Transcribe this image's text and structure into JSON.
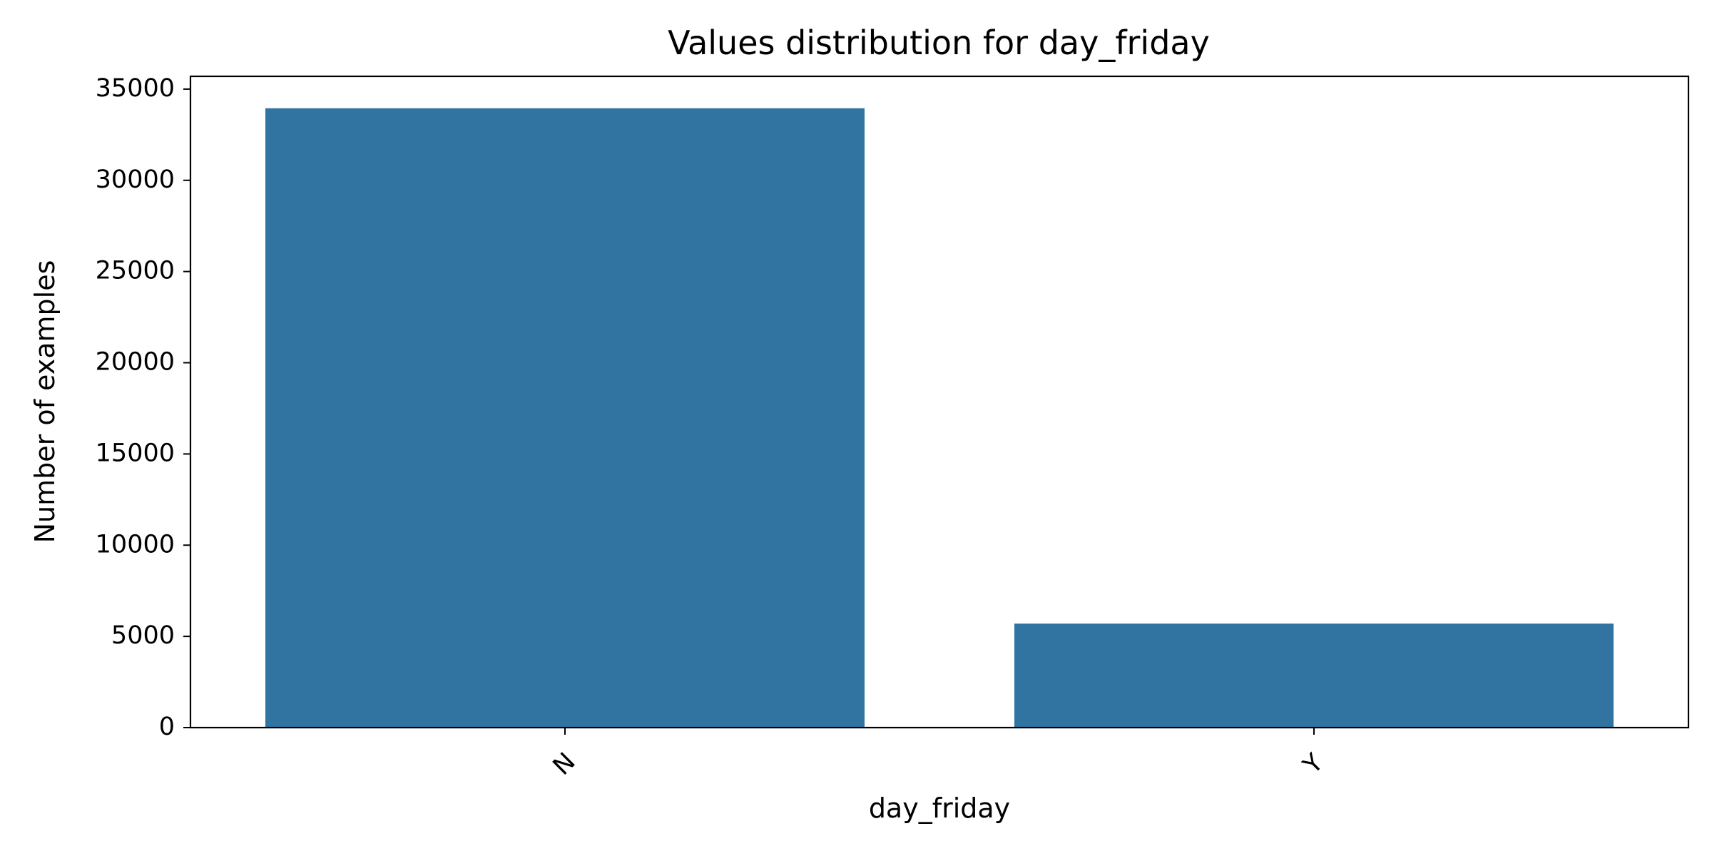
{
  "chart_data": {
    "type": "bar",
    "title": "Values distribution for day_friday",
    "xlabel": "day_friday",
    "ylabel": "Number of examples",
    "categories": [
      "N",
      "Y"
    ],
    "values": [
      33950,
      5700
    ],
    "ylim": [
      0,
      35700
    ],
    "yticks": [
      0,
      5000,
      10000,
      15000,
      20000,
      25000,
      30000,
      35000
    ],
    "ytick_labels": [
      "0",
      "5000",
      "10000",
      "15000",
      "20000",
      "25000",
      "30000",
      "35000"
    ],
    "bar_color": "#3274a1",
    "grid": false,
    "legend": "none"
  }
}
